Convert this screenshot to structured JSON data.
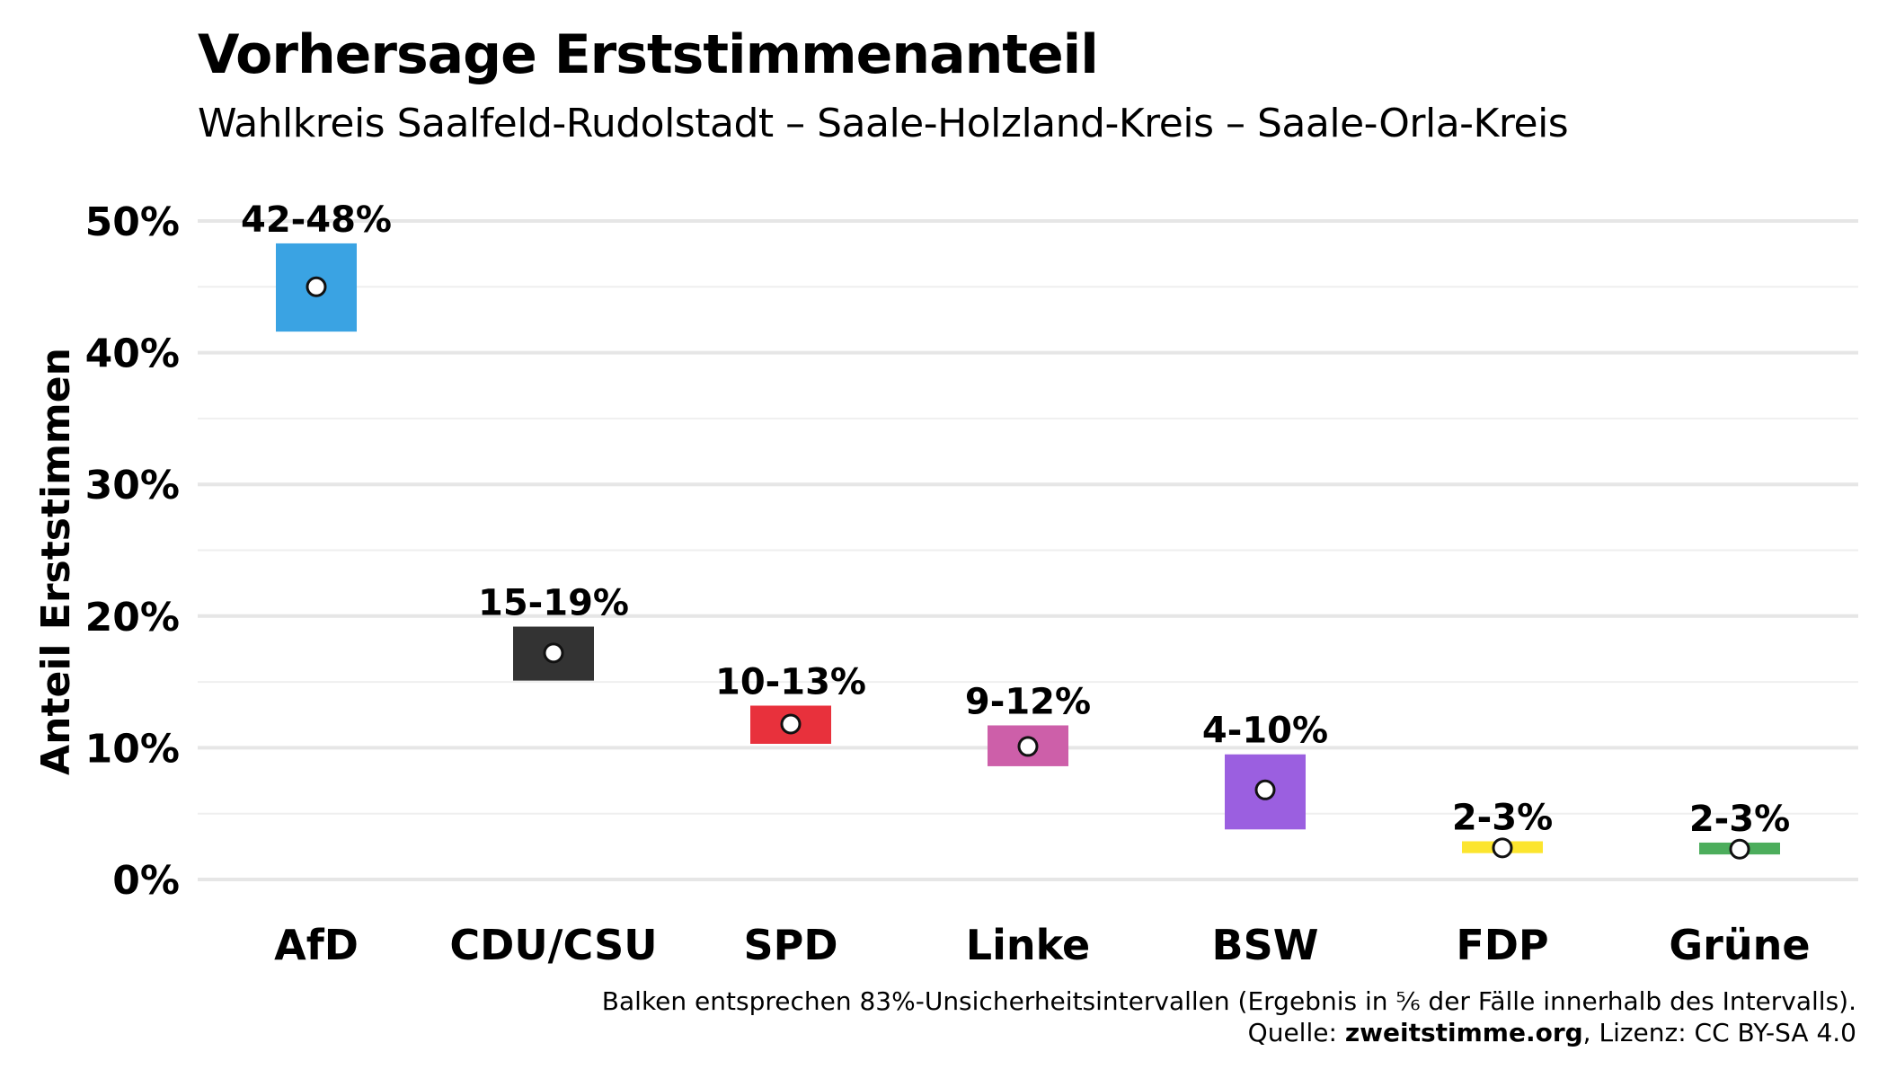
{
  "chart_data": {
    "type": "bar",
    "title": "Vorhersage Erststimmenanteil",
    "subtitle": "Wahlkreis Saalfeld-Rudolstadt – Saale-Holzland-Kreis – Saale-Orla-Kreis",
    "ylabel": "Anteil Erststimmen",
    "xlabel": "",
    "ylim": [
      0,
      50
    ],
    "yticks": [
      0,
      10,
      20,
      30,
      40,
      50
    ],
    "ytick_labels": [
      "0%",
      "10%",
      "20%",
      "30%",
      "40%",
      "50%"
    ],
    "grid": true,
    "categories": [
      "AfD",
      "CDU/CSU",
      "SPD",
      "Linke",
      "BSW",
      "FDP",
      "Grüne"
    ],
    "series": [
      {
        "low": [
          41.6,
          15.1,
          10.3,
          8.6,
          3.8,
          2.0,
          1.9
        ],
        "high": [
          48.3,
          19.2,
          13.2,
          11.7,
          9.5,
          2.9,
          2.8
        ],
        "point": [
          45.0,
          17.2,
          11.8,
          10.1,
          6.8,
          2.4,
          2.3
        ]
      }
    ],
    "value_labels": [
      "42-48%",
      "15-19%",
      "10-13%",
      "9-12%",
      "4-10%",
      "2-3%",
      "2-3%"
    ],
    "colors": [
      "#3aa3e3",
      "#333333",
      "#e8313c",
      "#cd5fa9",
      "#9b5fe0",
      "#fce52e",
      "#4cad5c"
    ],
    "caption_line1": "Balken entsprechen 83%-Unsicherheitsintervallen (Ergebnis in ⅚ der Fälle innerhalb des Intervalls).",
    "caption_source_prefix": "Quelle: ",
    "caption_source_link": "zweitstimme.org",
    "caption_license": ", Lizenz: CC BY-SA 4.0"
  }
}
